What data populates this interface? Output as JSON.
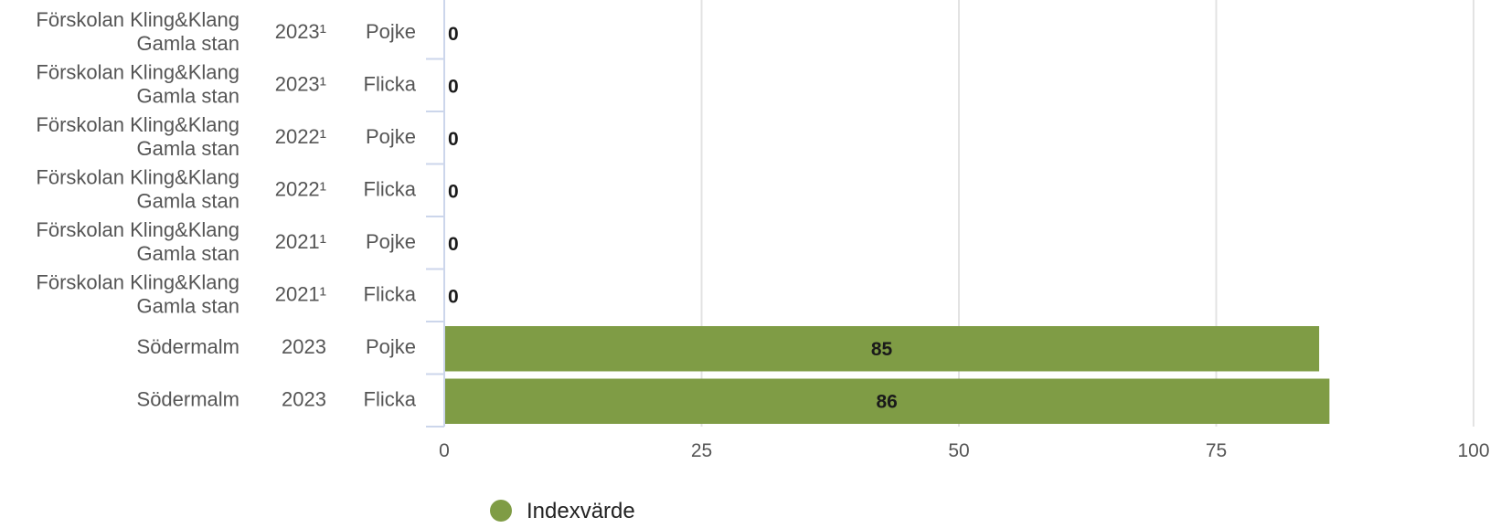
{
  "chart_data": {
    "type": "bar",
    "orientation": "horizontal",
    "categories": [
      {
        "area": "Förskolan Kling&Klang Gamla stan",
        "year": "2023¹",
        "gender": "Pojke"
      },
      {
        "area": "Förskolan Kling&Klang Gamla stan",
        "year": "2023¹",
        "gender": "Flicka"
      },
      {
        "area": "Förskolan Kling&Klang Gamla stan",
        "year": "2022¹",
        "gender": "Pojke"
      },
      {
        "area": "Förskolan Kling&Klang Gamla stan",
        "year": "2022¹",
        "gender": "Flicka"
      },
      {
        "area": "Förskolan Kling&Klang Gamla stan",
        "year": "2021¹",
        "gender": "Pojke"
      },
      {
        "area": "Förskolan Kling&Klang Gamla stan",
        "year": "2021¹",
        "gender": "Flicka"
      },
      {
        "area": "Södermalm",
        "year": "2023",
        "gender": "Pojke"
      },
      {
        "area": "Södermalm",
        "year": "2023",
        "gender": "Flicka"
      }
    ],
    "series": [
      {
        "name": "Indexvärde",
        "color": "#7f9c45",
        "values": [
          0,
          0,
          0,
          0,
          0,
          0,
          85,
          86
        ]
      }
    ],
    "xlim": [
      0,
      100
    ],
    "xticks": [
      "0",
      "25",
      "50",
      "75",
      "100"
    ],
    "grid": true,
    "legend_position": "bottom-center"
  }
}
